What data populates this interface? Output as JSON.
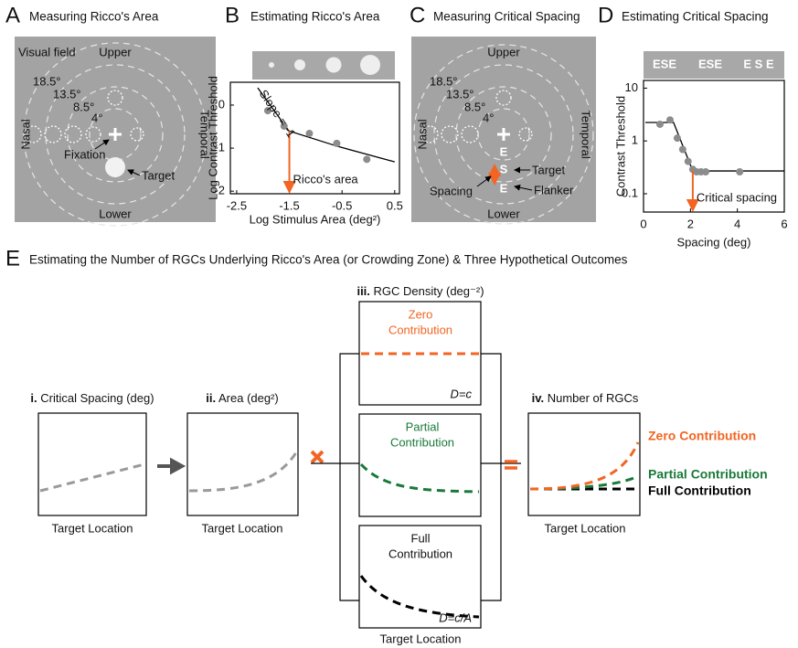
{
  "panel_a": {
    "letter": "A",
    "title": "Measuring Ricco's Area",
    "visual_field": "Visual field",
    "upper": "Upper",
    "lower": "Lower",
    "nasal": "Nasal",
    "temporal": "Temporal",
    "eccentricities": [
      "18.5°",
      "13.5°",
      "8.5°",
      "4°"
    ],
    "fixation": "Fixation",
    "target": "Target"
  },
  "panel_b": {
    "letter": "B",
    "title": "Estimating Ricco's Area"
  },
  "panel_c": {
    "letter": "C",
    "title": "Measuring Critical Spacing",
    "upper": "Upper",
    "lower": "Lower",
    "nasal": "Nasal",
    "temporal": "Temporal",
    "eccentricities": [
      "18.5°",
      "13.5°",
      "8.5°",
      "4°"
    ],
    "stimulus_letters": [
      "E",
      "S",
      "E"
    ],
    "target": "Target",
    "flanker": "Flanker",
    "spacing": "Spacing"
  },
  "panel_d": {
    "letter": "D",
    "title": "Estimating Critical Spacing",
    "stimulus_strip": [
      "ESE",
      "ESE",
      "E S E"
    ]
  },
  "panel_e": {
    "letter": "E",
    "title": "Estimating the Number of RGCs Underlying Ricco's Area (or Crowding Zone) & Three Hypothetical Outcomes",
    "spacing": {
      "numeral": "i.",
      "label": "Critical Spacing (deg)",
      "x_label": "Target Location"
    },
    "area": {
      "numeral": "ii.",
      "label": "Area (deg²)",
      "x_label": "Target Location"
    },
    "density": {
      "numeral": "iii.",
      "label": "RGC Density (deg⁻²)",
      "x_label": "Target Location",
      "zero": [
        "Zero",
        "Contribution"
      ],
      "partial": [
        "Partial",
        "Contribution"
      ],
      "full": [
        "Full",
        "Contribution"
      ],
      "zero_formula": "D=c",
      "full_formula": "D=c/A"
    },
    "rgcs": {
      "numeral": "iv.",
      "label": "Number of RGCs",
      "x_label": "Target Location",
      "outcomes": [
        "Zero Contribution",
        "Partial Contribution",
        "Full Contribution"
      ]
    }
  },
  "chart_data": [
    {
      "type": "scatter",
      "x_label": "Log Stimulus Area (deg²)",
      "y_label": "Log Contrast Threshold",
      "xlim": [
        -2.62,
        0.59
      ],
      "ylim": [
        -2.06,
        0.53
      ],
      "xticks": [
        -2.5,
        -1.5,
        -0.5,
        0.5
      ],
      "yticks": [
        -2,
        -1,
        0
      ],
      "points": {
        "color": "#8c8c8c",
        "x": [
          -1.91,
          -1.6,
          -1.12,
          -0.6,
          -0.03
        ],
        "y": [
          -0.13,
          -0.49,
          -0.66,
          -0.89,
          -1.26
        ]
      },
      "fit": {
        "color": "#000000",
        "x": [
          -2.1,
          -1.51,
          -0.58,
          0.5
        ],
        "y": [
          0.4,
          -0.6,
          -0.96,
          -1.32
        ]
      },
      "slope_label": "Slope = -1",
      "marker": {
        "label": "Ricco's area",
        "x": -1.5,
        "color": "#f26522"
      }
    },
    {
      "type": "scatter",
      "x_label": "Spacing (deg)",
      "y_label": "Contrast Threshold",
      "ylog": true,
      "xlim": [
        0,
        6
      ],
      "ylim": [
        0.045,
        14
      ],
      "xticks": [
        0,
        2,
        4,
        6
      ],
      "yticks": [
        0.1,
        1,
        10
      ],
      "points": {
        "color": "#8c8c8c",
        "x": [
          0.7,
          1.13,
          1.44,
          1.67,
          1.9,
          2.1,
          2.26,
          2.45,
          2.65,
          4.1
        ],
        "y": [
          2.07,
          2.5,
          1.13,
          0.69,
          0.41,
          0.29,
          0.26,
          0.26,
          0.26,
          0.26
        ]
      },
      "fit": {
        "color": "#000000",
        "x": [
          0.08,
          1.28,
          2.1,
          6
        ],
        "y": [
          2.24,
          2.24,
          0.27,
          0.27
        ]
      },
      "marker": {
        "label": "Critical spacing",
        "x": 2.1,
        "color": "#f26522"
      }
    }
  ]
}
